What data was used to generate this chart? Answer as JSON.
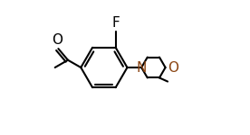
{
  "bg_color": "#ffffff",
  "line_color": "#000000",
  "n_color": "#8B4513",
  "o_color": "#8B4513",
  "line_width": 1.5,
  "fig_width": 2.76,
  "fig_height": 1.5,
  "dpi": 100,
  "xlim": [
    0.0,
    1.0
  ],
  "ylim": [
    0.05,
    0.95
  ]
}
